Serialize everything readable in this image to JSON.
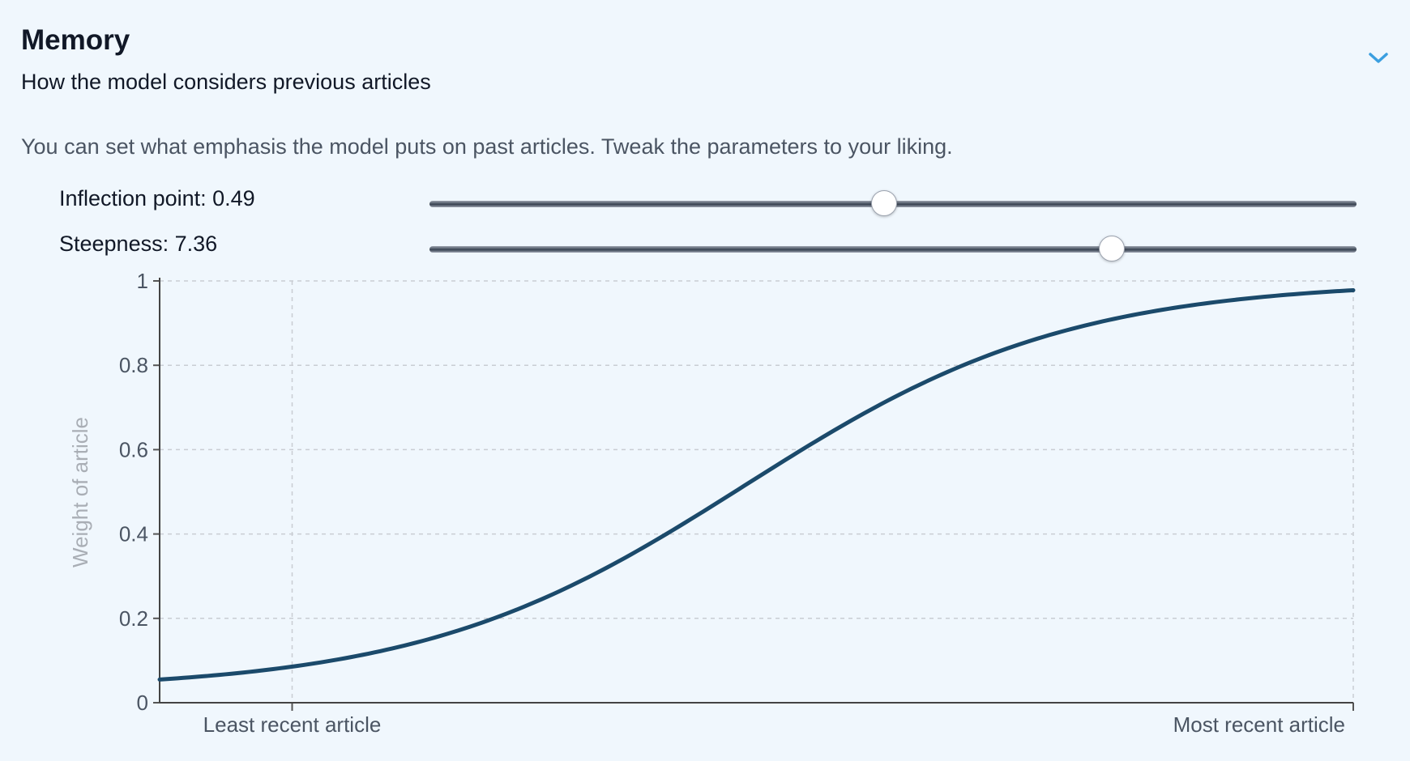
{
  "section": {
    "title": "Memory",
    "subtitle": "How the model considers previous articles",
    "description": "You can set what emphasis the model puts on past articles. Tweak the parameters to your liking."
  },
  "controls": {
    "inflection": {
      "label": "Inflection point: 0.49",
      "value": 0.49,
      "min": 0,
      "max": 1
    },
    "steepness": {
      "label": "Steepness: 7.36",
      "value": 7.36,
      "min": 0,
      "max": 10
    }
  },
  "icons": {
    "collapse": "chevron-down-icon"
  },
  "colors": {
    "background": "#f0f7fd",
    "line": "#1b4a6b",
    "accent": "#3b9fe0",
    "grid": "#c9cdd3",
    "axis_label": "#a9aeb5"
  },
  "chart_data": {
    "type": "line",
    "title": "",
    "xlabel": "",
    "ylabel": "Weight of article",
    "x_range": [
      0,
      1
    ],
    "ylim": [
      0,
      1
    ],
    "y_ticks": [
      "0",
      "0.2",
      "0.4",
      "0.6",
      "0.8",
      "1"
    ],
    "y_tick_values": [
      0,
      0.2,
      0.4,
      0.6,
      0.8,
      1
    ],
    "x_tick_labels": [
      {
        "label": "Least recent article",
        "x": 0.111
      },
      {
        "label": "Most recent article",
        "x": 1.0
      }
    ],
    "grid": true,
    "series": [
      {
        "name": "Weight",
        "function": "logistic",
        "inflection": 0.49,
        "steepness": 7.36,
        "y_start": 0.055,
        "y_end": 0.978
      }
    ]
  }
}
